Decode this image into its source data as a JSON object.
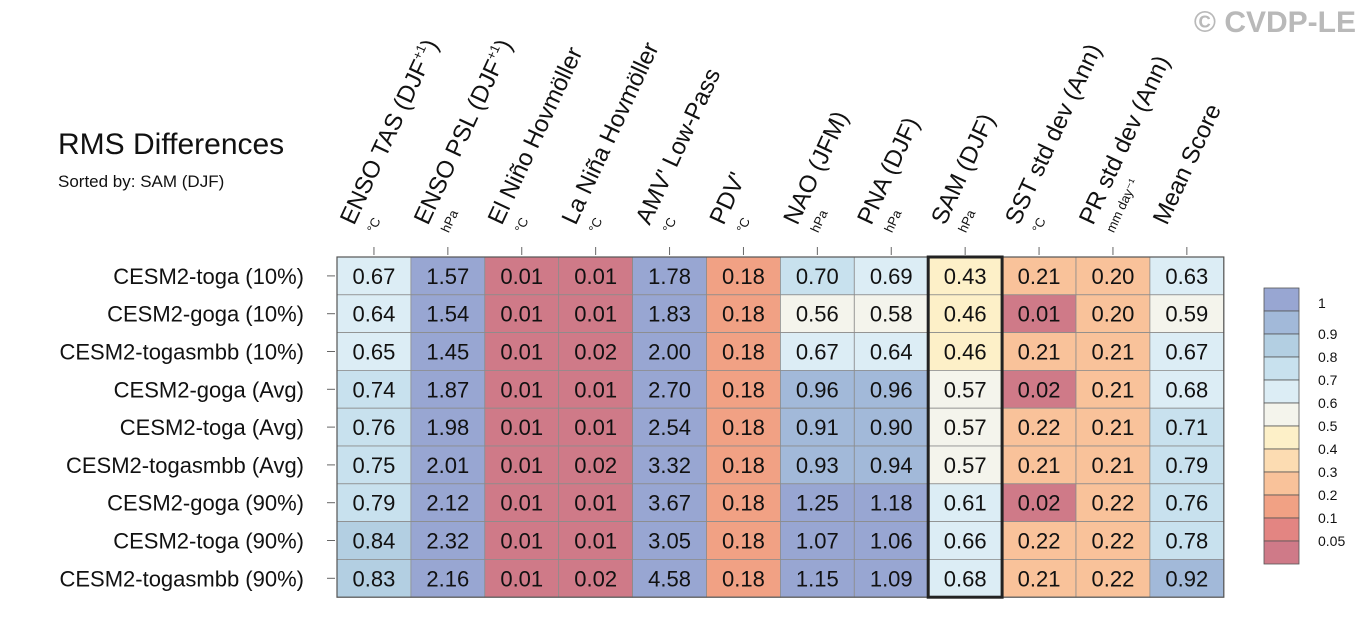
{
  "watermark": "© CVDP-LE",
  "header": {
    "title": "RMS Differences",
    "subtitle": "Sorted by: SAM (DJF)"
  },
  "chart_data": {
    "type": "heatmap",
    "columns": [
      {
        "label": "ENSO TAS (DJF",
        "sup": "+1",
        "close": ")",
        "unit": "°C"
      },
      {
        "label": "ENSO PSL (DJF",
        "sup": "+1",
        "close": ")",
        "unit": "hPa"
      },
      {
        "label": "El Niño Hovmöller",
        "sup": "",
        "close": "",
        "unit": "°C"
      },
      {
        "label": "La Niña Hovmöller",
        "sup": "",
        "close": "",
        "unit": "°C"
      },
      {
        "label": "AMV' Low-Pass",
        "sup": "",
        "close": "",
        "unit": "°C"
      },
      {
        "label": "PDV'",
        "sup": "",
        "close": "",
        "unit": "°C"
      },
      {
        "label": "NAO (JFM)",
        "sup": "",
        "close": "",
        "unit": "hPa"
      },
      {
        "label": "PNA (DJF)",
        "sup": "",
        "close": "",
        "unit": "hPa"
      },
      {
        "label": "SAM (DJF)",
        "sup": "",
        "close": "",
        "unit": "hPa"
      },
      {
        "label": "SST std dev (Ann)",
        "sup": "",
        "close": "",
        "unit": "°C"
      },
      {
        "label": "PR std dev (Ann)",
        "sup": "",
        "close": "",
        "unit": "mm day⁻¹"
      },
      {
        "label": "Mean Score",
        "sup": "",
        "close": "",
        "unit": ""
      }
    ],
    "rows": [
      "CESM2-toga (10%)",
      "CESM2-goga (10%)",
      "CESM2-togasmbb (10%)",
      "CESM2-goga (Avg)",
      "CESM2-toga (Avg)",
      "CESM2-togasmbb (Avg)",
      "CESM2-goga (90%)",
      "CESM2-toga (90%)",
      "CESM2-togasmbb (90%)"
    ],
    "values": [
      [
        "0.67",
        "1.57",
        "0.01",
        "0.01",
        "1.78",
        "0.18",
        "0.70",
        "0.69",
        "0.43",
        "0.21",
        "0.20",
        "0.63"
      ],
      [
        "0.64",
        "1.54",
        "0.01",
        "0.01",
        "1.83",
        "0.18",
        "0.56",
        "0.58",
        "0.46",
        "0.01",
        "0.20",
        "0.59"
      ],
      [
        "0.65",
        "1.45",
        "0.01",
        "0.02",
        "2.00",
        "0.18",
        "0.67",
        "0.64",
        "0.46",
        "0.21",
        "0.21",
        "0.67"
      ],
      [
        "0.74",
        "1.87",
        "0.01",
        "0.01",
        "2.70",
        "0.18",
        "0.96",
        "0.96",
        "0.57",
        "0.02",
        "0.21",
        "0.68"
      ],
      [
        "0.76",
        "1.98",
        "0.01",
        "0.01",
        "2.54",
        "0.18",
        "0.91",
        "0.90",
        "0.57",
        "0.22",
        "0.21",
        "0.71"
      ],
      [
        "0.75",
        "2.01",
        "0.01",
        "0.02",
        "3.32",
        "0.18",
        "0.93",
        "0.94",
        "0.57",
        "0.21",
        "0.21",
        "0.79"
      ],
      [
        "0.79",
        "2.12",
        "0.01",
        "0.01",
        "3.67",
        "0.18",
        "1.25",
        "1.18",
        "0.61",
        "0.02",
        "0.22",
        "0.76"
      ],
      [
        "0.84",
        "2.32",
        "0.01",
        "0.01",
        "3.05",
        "0.18",
        "1.07",
        "1.06",
        "0.66",
        "0.22",
        "0.22",
        "0.78"
      ],
      [
        "0.83",
        "2.16",
        "0.01",
        "0.02",
        "4.58",
        "0.18",
        "1.15",
        "1.09",
        "0.68",
        "0.21",
        "0.22",
        "0.92"
      ]
    ],
    "highlight_column": 8,
    "colorbar": {
      "labels": [
        "1",
        "0.9",
        "0.8",
        "0.7",
        "0.6",
        "0.5",
        "0.4",
        "0.3",
        "0.2",
        "0.1",
        "0.05"
      ],
      "thresholds": [
        1.0,
        0.9,
        0.8,
        0.7,
        0.6,
        0.5,
        0.4,
        0.3,
        0.2,
        0.1,
        0.05
      ],
      "colors": [
        "#98a6d2",
        "#a2b9d9",
        "#b3cfe2",
        "#c8e1ee",
        "#dcedf5",
        "#f4f4ec",
        "#fdf0c8",
        "#fcdcb2",
        "#f9c29a",
        "#f1a184",
        "#e38582",
        "#cf7a88"
      ]
    }
  }
}
